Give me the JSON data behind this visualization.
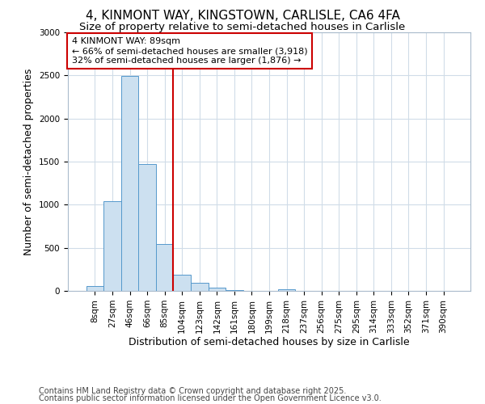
{
  "title": "4, KINMONT WAY, KINGSTOWN, CARLISLE, CA6 4FA",
  "subtitle": "Size of property relative to semi-detached houses in Carlisle",
  "xlabel": "Distribution of semi-detached houses by size in Carlisle",
  "ylabel": "Number of semi-detached properties",
  "footnote1": "Contains HM Land Registry data © Crown copyright and database right 2025.",
  "footnote2": "Contains public sector information licensed under the Open Government Licence v3.0.",
  "bin_labels": [
    "8sqm",
    "27sqm",
    "46sqm",
    "66sqm",
    "85sqm",
    "104sqm",
    "123sqm",
    "142sqm",
    "161sqm",
    "180sqm",
    "199sqm",
    "218sqm",
    "237sqm",
    "256sqm",
    "275sqm",
    "295sqm",
    "314sqm",
    "333sqm",
    "352sqm",
    "371sqm",
    "390sqm"
  ],
  "bar_values": [
    60,
    1040,
    2490,
    1470,
    540,
    185,
    90,
    35,
    5,
    0,
    0,
    20,
    0,
    0,
    0,
    0,
    0,
    0,
    0,
    0,
    0
  ],
  "bar_color": "#cce0f0",
  "bar_edge_color": "#5599cc",
  "red_line_x": 4.5,
  "annotation_text": "4 KINMONT WAY: 89sqm\n← 66% of semi-detached houses are smaller (3,918)\n32% of semi-detached houses are larger (1,876) →",
  "annotation_box_color": "#ffffff",
  "annotation_box_edge_color": "#cc0000",
  "red_line_color": "#cc0000",
  "ylim": [
    0,
    3000
  ],
  "grid_color": "#d0dce8",
  "background_color": "#ffffff",
  "title_fontsize": 11,
  "subtitle_fontsize": 9.5,
  "axis_label_fontsize": 9,
  "tick_fontsize": 7.5,
  "annotation_fontsize": 8,
  "footnote_fontsize": 7
}
